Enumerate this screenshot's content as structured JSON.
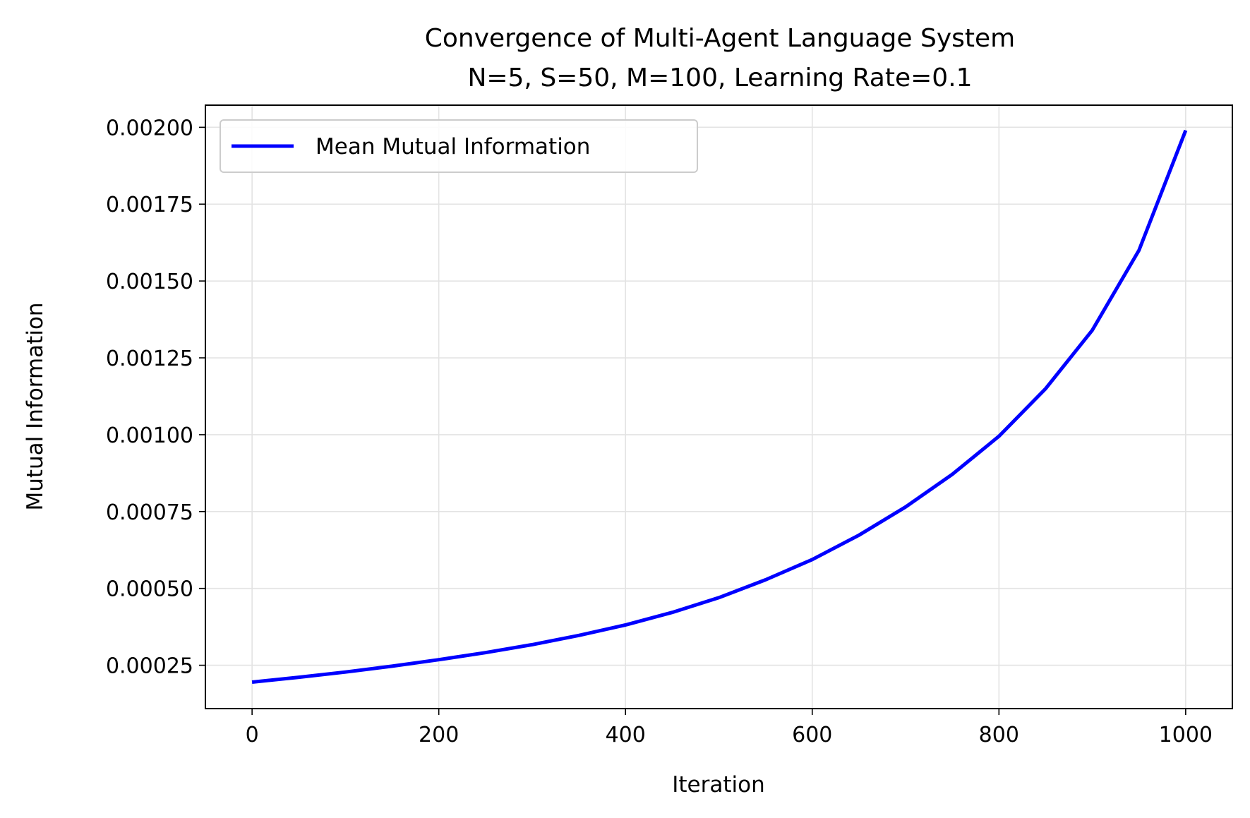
{
  "chart_data": {
    "type": "line",
    "title": "Convergence of Multi-Agent Language System",
    "subtitle": "N=5, S=50, M=100, Learning Rate=0.1",
    "xlabel": "Iteration",
    "ylabel": "Mutual Information",
    "xlim": [
      -50,
      1050
    ],
    "ylim": [
      0.000109,
      0.002072
    ],
    "xticks": [
      0,
      200,
      400,
      600,
      800,
      1000
    ],
    "xtick_labels": [
      "0",
      "200",
      "400",
      "600",
      "800",
      "1000"
    ],
    "yticks": [
      0.00025,
      0.0005,
      0.00075,
      0.001,
      0.00125,
      0.0015,
      0.00175,
      0.002
    ],
    "ytick_labels": [
      "0.00025",
      "0.00050",
      "0.00075",
      "0.00100",
      "0.00125",
      "0.00150",
      "0.00175",
      "0.00200"
    ],
    "grid": true,
    "legend_position": "upper-left",
    "series": [
      {
        "name": "Mean Mutual Information",
        "color": "#0000ff",
        "x": [
          0,
          50,
          100,
          150,
          200,
          250,
          300,
          350,
          400,
          450,
          500,
          550,
          600,
          650,
          700,
          750,
          800,
          850,
          900,
          950,
          1000
        ],
        "y": [
          0.000195,
          0.000211,
          0.000228,
          0.000247,
          0.000268,
          0.000291,
          0.000317,
          0.000347,
          0.000381,
          0.000422,
          0.00047,
          0.000528,
          0.000594,
          0.000673,
          0.000765,
          0.000871,
          0.000995,
          0.00115,
          0.00134,
          0.0016,
          0.00199
        ]
      }
    ]
  }
}
